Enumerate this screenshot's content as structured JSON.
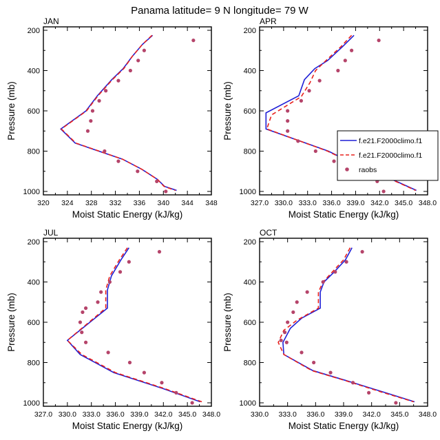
{
  "figure": {
    "title": "Panama  latitude= 9 N longitude= 79 W"
  },
  "legend": {
    "entries": [
      {
        "label": "f.e21.F2000climo.f1",
        "color": "#1f1fd6",
        "style": "solid"
      },
      {
        "label": "f.e21.F2000climo.f1",
        "color": "#e8201c",
        "style": "dashed"
      },
      {
        "label": "raobs",
        "color": "#b5446a",
        "style": "marker"
      }
    ],
    "placement": "right of APR panel"
  },
  "chart_data": [
    {
      "panel": "JAN",
      "type": "line",
      "title": "JAN",
      "xlabel": "Moist Static Energy (kJ/kg)",
      "ylabel": "Pressure (mb)",
      "xlim": [
        320,
        348
      ],
      "ylim": [
        1000,
        200
      ],
      "y_inverted": true,
      "xticks": [
        "320",
        "324",
        "328",
        "332",
        "336",
        "340",
        "344",
        "348"
      ],
      "yticks": [
        "200",
        "400",
        "600",
        "800",
        "1000"
      ],
      "series": [
        {
          "name": "f.e21.F2000climo.f1",
          "color": "#1f1fd6",
          "dash": "none",
          "points": [
            [
              338.2,
              225
            ],
            [
              336.5,
              270
            ],
            [
              334.8,
              330
            ],
            [
              333.3,
              390
            ],
            [
              331.4,
              445
            ],
            [
              329.0,
              525
            ],
            [
              327.1,
              600
            ],
            [
              322.9,
              690
            ],
            [
              325.3,
              760
            ],
            [
              333.2,
              840
            ],
            [
              336.4,
              890
            ],
            [
              339.0,
              940
            ],
            [
              340.2,
              975
            ],
            [
              342.2,
              995
            ]
          ]
        },
        {
          "name": "f.e21.F2000climo.f1",
          "color": "#e8201c",
          "dash": "6,4",
          "points": [
            [
              338.1,
              225
            ],
            [
              336.5,
              270
            ],
            [
              334.8,
              330
            ],
            [
              333.4,
              390
            ],
            [
              331.5,
              445
            ],
            [
              329.1,
              525
            ],
            [
              327.2,
              600
            ],
            [
              323.0,
              690
            ],
            [
              325.4,
              760
            ],
            [
              333.2,
              840
            ],
            [
              336.4,
              890
            ],
            [
              339.0,
              940
            ],
            [
              340.1,
              975
            ],
            [
              342.0,
              995
            ]
          ]
        },
        {
          "name": "raobs",
          "color": "#b5446a",
          "marker": true,
          "points": [
            [
              345.0,
              250
            ],
            [
              336.8,
              300
            ],
            [
              335.8,
              350
            ],
            [
              334.5,
              400
            ],
            [
              332.5,
              450
            ],
            [
              330.4,
              500
            ],
            [
              329.3,
              550
            ],
            [
              328.2,
              600
            ],
            [
              327.9,
              650
            ],
            [
              327.4,
              700
            ],
            [
              330.2,
              800
            ],
            [
              332.5,
              850
            ],
            [
              335.7,
              900
            ],
            [
              338.9,
              950
            ],
            [
              340.4,
              1000
            ]
          ]
        }
      ]
    },
    {
      "panel": "APR",
      "type": "line",
      "title": "APR",
      "xlabel": "Moist Static Energy (kJ/kg)",
      "ylabel": "Pressure (mb)",
      "xlim": [
        327,
        348
      ],
      "ylim": [
        1000,
        200
      ],
      "y_inverted": true,
      "xticks": [
        "327.0",
        "330.0",
        "333.0",
        "336.0",
        "339.0",
        "342.0",
        "345.0",
        "348.0"
      ],
      "yticks": [
        "200",
        "400",
        "600",
        "800",
        "1000"
      ],
      "series": [
        {
          "name": "f.e21.F2000climo.f1",
          "color": "#1f1fd6",
          "dash": "none",
          "points": [
            [
              338.8,
              225
            ],
            [
              337.4,
              280
            ],
            [
              335.5,
              350
            ],
            [
              333.9,
              390
            ],
            [
              332.6,
              445
            ],
            [
              331.9,
              525
            ],
            [
              327.8,
              610
            ],
            [
              327.8,
              690
            ],
            [
              335.6,
              800
            ],
            [
              339.7,
              880
            ],
            [
              344.1,
              950
            ],
            [
              346.6,
              995
            ]
          ]
        },
        {
          "name": "f.e21.F2000climo.f1",
          "color": "#e8201c",
          "dash": "6,4",
          "points": [
            [
              338.5,
              225
            ],
            [
              337.2,
              280
            ],
            [
              335.3,
              350
            ],
            [
              334.0,
              400
            ],
            [
              333.3,
              460
            ],
            [
              332.2,
              530
            ],
            [
              328.5,
              620
            ],
            [
              327.9,
              690
            ],
            [
              335.5,
              800
            ],
            [
              339.6,
              880
            ],
            [
              344.0,
              950
            ],
            [
              346.5,
              995
            ]
          ]
        },
        {
          "name": "raobs",
          "color": "#b5446a",
          "marker": true,
          "points": [
            [
              341.9,
              250
            ],
            [
              338.5,
              300
            ],
            [
              337.7,
              350
            ],
            [
              336.8,
              400
            ],
            [
              334.5,
              450
            ],
            [
              333.2,
              500
            ],
            [
              332.2,
              550
            ],
            [
              330.5,
              600
            ],
            [
              330.5,
              650
            ],
            [
              330.5,
              700
            ],
            [
              331.8,
              750
            ],
            [
              334.0,
              800
            ],
            [
              336.3,
              850
            ],
            [
              338.7,
              900
            ],
            [
              341.7,
              950
            ],
            [
              342.5,
              1000
            ]
          ]
        }
      ]
    },
    {
      "panel": "JUL",
      "type": "line",
      "title": "JUL",
      "xlabel": "Moist Static Energy (kJ/kg)",
      "ylabel": "Pressure (mb)",
      "xlim": [
        327,
        348
      ],
      "ylim": [
        1000,
        200
      ],
      "y_inverted": true,
      "xticks": [
        "327.0",
        "330.0",
        "333.0",
        "336.0",
        "339.0",
        "342.0",
        "345.0",
        "348.0"
      ],
      "yticks": [
        "200",
        "400",
        "600",
        "800",
        "1000"
      ],
      "series": [
        {
          "name": "f.e21.F2000climo.f1",
          "color": "#1f1fd6",
          "dash": "none",
          "points": [
            [
              337.7,
              230
            ],
            [
              336.7,
              290
            ],
            [
              335.5,
              370
            ],
            [
              335.0,
              440
            ],
            [
              335.0,
              530
            ],
            [
              330.0,
              690
            ],
            [
              331.6,
              760
            ],
            [
              335.8,
              850
            ],
            [
              342.0,
              930
            ],
            [
              346.6,
              995
            ]
          ]
        },
        {
          "name": "f.e21.F2000climo.f1",
          "color": "#e8201c",
          "dash": "6,4",
          "points": [
            [
              337.5,
              230
            ],
            [
              336.5,
              290
            ],
            [
              335.3,
              370
            ],
            [
              334.8,
              440
            ],
            [
              334.8,
              530
            ],
            [
              330.0,
              690
            ],
            [
              331.8,
              760
            ],
            [
              336.0,
              850
            ],
            [
              342.2,
              930
            ],
            [
              346.8,
              995
            ]
          ]
        },
        {
          "name": "raobs",
          "color": "#b5446a",
          "marker": true,
          "points": [
            [
              341.5,
              250
            ],
            [
              337.7,
              300
            ],
            [
              336.6,
              350
            ],
            [
              335.3,
              400
            ],
            [
              334.2,
              450
            ],
            [
              333.8,
              500
            ],
            [
              332.3,
              530
            ],
            [
              331.9,
              550
            ],
            [
              331.6,
              600
            ],
            [
              331.8,
              650
            ],
            [
              332.3,
              700
            ],
            [
              335.1,
              750
            ],
            [
              337.8,
              800
            ],
            [
              339.6,
              850
            ],
            [
              341.8,
              900
            ],
            [
              343.6,
              950
            ],
            [
              345.6,
              1000
            ]
          ]
        }
      ]
    },
    {
      "panel": "OCT",
      "type": "line",
      "title": "OCT",
      "xlabel": "Moist Static Energy (kJ/kg)",
      "ylabel": "Pressure (mb)",
      "xlim": [
        330,
        348
      ],
      "ylim": [
        1000,
        200
      ],
      "y_inverted": true,
      "xticks": [
        "330.0",
        "333.0",
        "336.0",
        "339.0",
        "342.0",
        "345.0",
        "348.0"
      ],
      "yticks": [
        "200",
        "400",
        "600",
        "800",
        "1000"
      ],
      "series": [
        {
          "name": "f.e21.F2000climo.f1",
          "color": "#1f1fd6",
          "dash": "none",
          "points": [
            [
              339.9,
              230
            ],
            [
              339.2,
              290
            ],
            [
              338.0,
              350
            ],
            [
              336.9,
              400
            ],
            [
              336.5,
              450
            ],
            [
              336.5,
              530
            ],
            [
              334.5,
              580
            ],
            [
              333.3,
              630
            ],
            [
              332.5,
              700
            ],
            [
              332.6,
              760
            ],
            [
              335.7,
              840
            ],
            [
              339.3,
              890
            ],
            [
              343.5,
              950
            ],
            [
              346.6,
              995
            ]
          ]
        },
        {
          "name": "f.e21.F2000climo.f1",
          "color": "#e8201c",
          "dash": "6,4",
          "points": [
            [
              339.7,
              230
            ],
            [
              339.0,
              290
            ],
            [
              337.8,
              350
            ],
            [
              336.8,
              400
            ],
            [
              336.3,
              450
            ],
            [
              336.3,
              530
            ],
            [
              334.0,
              590
            ],
            [
              332.6,
              640
            ],
            [
              332.0,
              700
            ],
            [
              332.6,
              760
            ],
            [
              335.6,
              840
            ],
            [
              339.2,
              890
            ],
            [
              343.3,
              950
            ],
            [
              346.5,
              995
            ]
          ]
        },
        {
          "name": "raobs",
          "color": "#b5446a",
          "marker": true,
          "points": [
            [
              341.0,
              250
            ],
            [
              339.3,
              300
            ],
            [
              338.1,
              350
            ],
            [
              336.8,
              400
            ],
            [
              335.1,
              450
            ],
            [
              334.0,
              500
            ],
            [
              333.6,
              550
            ],
            [
              333.0,
              600
            ],
            [
              332.7,
              650
            ],
            [
              332.3,
              690
            ],
            [
              332.9,
              700
            ],
            [
              334.5,
              750
            ],
            [
              335.8,
              800
            ],
            [
              337.6,
              850
            ],
            [
              340.0,
              900
            ],
            [
              341.7,
              950
            ],
            [
              344.6,
              1000
            ]
          ]
        }
      ]
    }
  ]
}
